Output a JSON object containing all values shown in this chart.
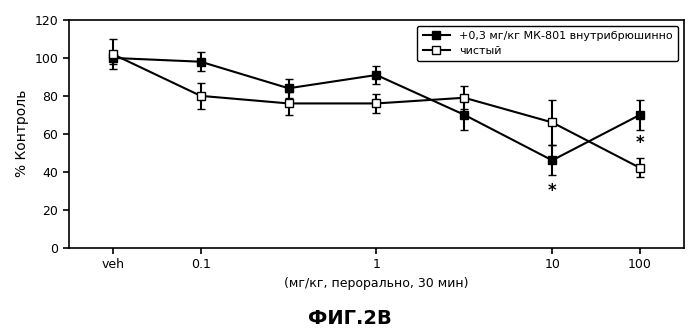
{
  "x_positions": [
    0,
    1,
    2,
    3,
    4,
    5,
    6
  ],
  "x_tick_labels": [
    "veh",
    "0.1",
    "1",
    "10",
    "100"
  ],
  "x_tick_positions": [
    0,
    1,
    3,
    5,
    6
  ],
  "mk801_y": [
    100,
    98,
    84,
    91,
    70,
    46,
    70
  ],
  "mk801_yerr": [
    3,
    5,
    5,
    5,
    8,
    8,
    8
  ],
  "clean_y": [
    102,
    80,
    76,
    76,
    79,
    66,
    42
  ],
  "clean_yerr": [
    8,
    7,
    6,
    5,
    6,
    12,
    5
  ],
  "ylabel": "% Контроль",
  "xlabel": "(мг/кг, перорально, 30 мин)",
  "title": "ФИГ.2В",
  "legend_mk801": "+0,3 мг/кг МК-801 внутрибрюшинно",
  "legend_clean": "чистый",
  "ylim": [
    0,
    120
  ],
  "yticks": [
    0,
    20,
    40,
    60,
    80,
    100,
    120
  ],
  "color": "#000000",
  "background_color": "#ffffff"
}
